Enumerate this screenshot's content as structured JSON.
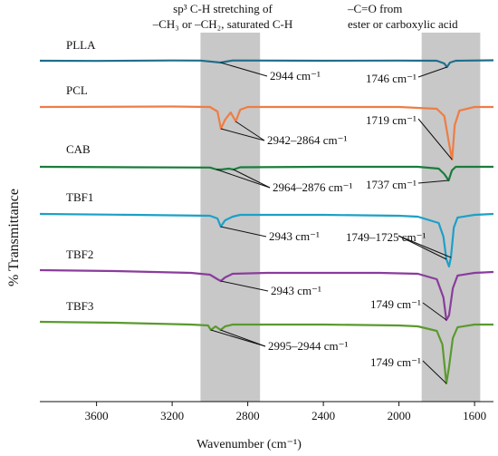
{
  "chart_data": {
    "type": "line",
    "title": "",
    "xlabel": "Wavenumber (cm⁻¹)",
    "ylabel": "% Transmittance",
    "x_range": [
      3900,
      1500
    ],
    "x_reversed": true,
    "x_ticks": [
      {
        "value": 3600,
        "label": "3600"
      },
      {
        "value": 3200,
        "label": "3200"
      },
      {
        "value": 2800,
        "label": "2800"
      },
      {
        "value": 2400,
        "label": "2400"
      },
      {
        "value": 2000,
        "label": "2000"
      },
      {
        "value": 1600,
        "label": "1600"
      }
    ],
    "shaded_regions": [
      {
        "name": "ch-band",
        "x_start": 3050,
        "x_end": 2735,
        "label_lines": [
          "sp³ C-H stretching of",
          "–CH₃ or –CH₂, saturated C-H"
        ]
      },
      {
        "name": "co-band",
        "x_start": 1880,
        "x_end": 1570,
        "label_lines": [
          "–C=O from",
          "ester or carboxylic acid"
        ]
      }
    ],
    "series": [
      {
        "name": "PLLA",
        "color": "#1f6e8c",
        "points": [
          [
            3900,
            0
          ],
          [
            3600,
            -0.2
          ],
          [
            3200,
            0.3
          ],
          [
            3050,
            0.2
          ],
          [
            2944,
            -2
          ],
          [
            2880,
            0.3
          ],
          [
            2400,
            0
          ],
          [
            2000,
            0.2
          ],
          [
            1800,
            0
          ],
          [
            1760,
            -3
          ],
          [
            1746,
            -7
          ],
          [
            1730,
            -2
          ],
          [
            1700,
            0
          ],
          [
            1500,
            0.5
          ]
        ]
      },
      {
        "name": "PCL",
        "color": "#ee7d45",
        "points": [
          [
            3900,
            0
          ],
          [
            3200,
            0.5
          ],
          [
            3000,
            0
          ],
          [
            2960,
            -5
          ],
          [
            2942,
            -24
          ],
          [
            2920,
            -14
          ],
          [
            2890,
            -6
          ],
          [
            2864,
            -16
          ],
          [
            2840,
            -3
          ],
          [
            2800,
            0
          ],
          [
            2400,
            0
          ],
          [
            2000,
            0
          ],
          [
            1800,
            -2
          ],
          [
            1760,
            -10
          ],
          [
            1735,
            -40
          ],
          [
            1719,
            -58
          ],
          [
            1705,
            -20
          ],
          [
            1680,
            -4
          ],
          [
            1600,
            0
          ],
          [
            1500,
            0
          ]
        ]
      },
      {
        "name": "CAB",
        "color": "#1a7c3c",
        "points": [
          [
            3900,
            0
          ],
          [
            3400,
            -0.5
          ],
          [
            3000,
            -0.8
          ],
          [
            2964,
            -3
          ],
          [
            2940,
            -3
          ],
          [
            2900,
            -2
          ],
          [
            2876,
            -3
          ],
          [
            2840,
            -0.5
          ],
          [
            2400,
            0
          ],
          [
            1900,
            0
          ],
          [
            1790,
            -2
          ],
          [
            1760,
            -8
          ],
          [
            1737,
            -15
          ],
          [
            1720,
            -4
          ],
          [
            1700,
            0
          ],
          [
            1500,
            0
          ]
        ]
      },
      {
        "name": "TBF1",
        "color": "#1ca0c8",
        "points": [
          [
            3900,
            0
          ],
          [
            3400,
            -1
          ],
          [
            3000,
            -2
          ],
          [
            2960,
            -5
          ],
          [
            2943,
            -14
          ],
          [
            2920,
            -7
          ],
          [
            2880,
            -3
          ],
          [
            2840,
            -1
          ],
          [
            2400,
            -1
          ],
          [
            2000,
            -2
          ],
          [
            1900,
            -3
          ],
          [
            1790,
            -10
          ],
          [
            1765,
            -25
          ],
          [
            1749,
            -50
          ],
          [
            1735,
            -58
          ],
          [
            1725,
            -48
          ],
          [
            1710,
            -15
          ],
          [
            1690,
            -4
          ],
          [
            1600,
            -1
          ],
          [
            1500,
            0
          ]
        ]
      },
      {
        "name": "TBF2",
        "color": "#8a3c9c",
        "points": [
          [
            3900,
            0
          ],
          [
            3500,
            -1
          ],
          [
            3100,
            -3
          ],
          [
            3000,
            -5
          ],
          [
            2960,
            -10
          ],
          [
            2943,
            -12
          ],
          [
            2920,
            -8
          ],
          [
            2880,
            -4
          ],
          [
            2700,
            -3
          ],
          [
            2400,
            -3
          ],
          [
            2100,
            -3
          ],
          [
            1900,
            -4
          ],
          [
            1800,
            -10
          ],
          [
            1765,
            -30
          ],
          [
            1749,
            -55
          ],
          [
            1735,
            -50
          ],
          [
            1715,
            -20
          ],
          [
            1690,
            -6
          ],
          [
            1600,
            -3
          ],
          [
            1500,
            -2
          ]
        ]
      },
      {
        "name": "TBF3",
        "color": "#5a9a2e",
        "points": [
          [
            3900,
            0
          ],
          [
            3500,
            -1
          ],
          [
            3100,
            -3
          ],
          [
            3010,
            -4
          ],
          [
            2995,
            -9
          ],
          [
            2970,
            -5
          ],
          [
            2944,
            -9
          ],
          [
            2920,
            -5
          ],
          [
            2880,
            -3
          ],
          [
            2400,
            -3
          ],
          [
            2000,
            -4
          ],
          [
            1900,
            -5
          ],
          [
            1800,
            -10
          ],
          [
            1770,
            -25
          ],
          [
            1749,
            -68
          ],
          [
            1735,
            -50
          ],
          [
            1715,
            -18
          ],
          [
            1690,
            -6
          ],
          [
            1600,
            -3
          ],
          [
            1500,
            -3
          ]
        ]
      }
    ],
    "annotations": [
      {
        "text": "2944 cm⁻¹",
        "series": "PLLA",
        "x": 2944,
        "anchor": "left"
      },
      {
        "text": "1746 cm⁻¹",
        "series": "PLLA",
        "x": 1746,
        "anchor": "right"
      },
      {
        "text": "2942–2864 cm⁻¹",
        "series": "PCL",
        "x": 2942,
        "anchor": "left"
      },
      {
        "text": "1719 cm⁻¹",
        "series": "PCL",
        "x": 1719,
        "anchor": "right"
      },
      {
        "text": "2964–2876 cm⁻¹",
        "series": "CAB",
        "x": 2964,
        "anchor": "left"
      },
      {
        "text": "1737 cm⁻¹",
        "series": "CAB",
        "x": 1737,
        "anchor": "right"
      },
      {
        "text": "2943 cm⁻¹",
        "series": "TBF1",
        "x": 2943,
        "anchor": "left"
      },
      {
        "text": "1749–1725 cm⁻¹",
        "series": "TBF1",
        "x": 1749,
        "anchor": "right"
      },
      {
        "text": "2943 cm⁻¹",
        "series": "TBF2",
        "x": 2943,
        "anchor": "left"
      },
      {
        "text": "1749 cm⁻¹",
        "series": "TBF2",
        "x": 1749,
        "anchor": "right"
      },
      {
        "text": "2995–2944 cm⁻¹",
        "series": "TBF3",
        "x": 2995,
        "anchor": "left"
      },
      {
        "text": "1749 cm⁻¹",
        "series": "TBF3",
        "x": 1749,
        "anchor": "right"
      }
    ],
    "grid": false,
    "legend": "inline-left"
  }
}
